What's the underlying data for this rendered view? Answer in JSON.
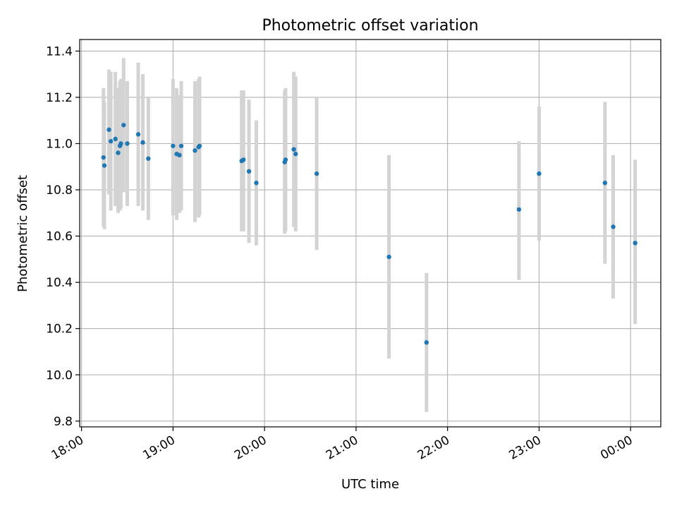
{
  "chart_data": {
    "type": "scatter",
    "title": "Photometric offset variation",
    "xlabel": "UTC time",
    "ylabel": "Photometric offset",
    "xlim_hours": [
      17.98,
      24.33
    ],
    "ylim": [
      9.775,
      11.45
    ],
    "grid": true,
    "x_ticks": [
      {
        "value": 18,
        "label": "18:00"
      },
      {
        "value": 19,
        "label": "19:00"
      },
      {
        "value": 20,
        "label": "20:00"
      },
      {
        "value": 21,
        "label": "21:00"
      },
      {
        "value": 22,
        "label": "22:00"
      },
      {
        "value": 23,
        "label": "23:00"
      },
      {
        "value": 24,
        "label": "00:00"
      }
    ],
    "y_ticks": [
      {
        "value": 9.8,
        "label": "9.8"
      },
      {
        "value": 10.0,
        "label": "10.0"
      },
      {
        "value": 10.2,
        "label": "10.2"
      },
      {
        "value": 10.4,
        "label": "10.4"
      },
      {
        "value": 10.6,
        "label": "10.6"
      },
      {
        "value": 10.8,
        "label": "10.8"
      },
      {
        "value": 11.0,
        "label": "11.0"
      },
      {
        "value": 11.2,
        "label": "11.2"
      },
      {
        "value": 11.4,
        "label": "11.4"
      }
    ],
    "colors": {
      "point": "#1f77b4",
      "errorbar": "#d3d3d3",
      "grid": "#b0b0b0"
    },
    "points": [
      {
        "t": 18.24,
        "y": 10.94,
        "lo": 10.64,
        "hi": 11.24
      },
      {
        "t": 18.25,
        "y": 10.905,
        "lo": 10.63,
        "hi": 11.18
      },
      {
        "t": 18.3,
        "y": 11.06,
        "lo": 10.78,
        "hi": 11.32
      },
      {
        "t": 18.32,
        "y": 11.01,
        "lo": 10.71,
        "hi": 11.31
      },
      {
        "t": 18.37,
        "y": 11.02,
        "lo": 10.73,
        "hi": 11.31
      },
      {
        "t": 18.4,
        "y": 10.96,
        "lo": 10.7,
        "hi": 11.24
      },
      {
        "t": 18.42,
        "y": 10.99,
        "lo": 10.71,
        "hi": 11.27
      },
      {
        "t": 18.43,
        "y": 11.0,
        "lo": 10.72,
        "hi": 11.28
      },
      {
        "t": 18.46,
        "y": 11.08,
        "lo": 10.79,
        "hi": 11.37
      },
      {
        "t": 18.5,
        "y": 11.0,
        "lo": 10.73,
        "hi": 11.27
      },
      {
        "t": 18.62,
        "y": 11.04,
        "lo": 10.73,
        "hi": 11.35
      },
      {
        "t": 18.67,
        "y": 11.005,
        "lo": 10.71,
        "hi": 11.3
      },
      {
        "t": 18.73,
        "y": 10.935,
        "lo": 10.67,
        "hi": 11.2
      },
      {
        "t": 19.0,
        "y": 10.99,
        "lo": 10.69,
        "hi": 11.28
      },
      {
        "t": 19.04,
        "y": 10.955,
        "lo": 10.67,
        "hi": 11.24
      },
      {
        "t": 19.07,
        "y": 10.95,
        "lo": 10.7,
        "hi": 11.21
      },
      {
        "t": 19.09,
        "y": 10.99,
        "lo": 10.71,
        "hi": 11.27
      },
      {
        "t": 19.24,
        "y": 10.97,
        "lo": 10.66,
        "hi": 11.27
      },
      {
        "t": 19.28,
        "y": 10.985,
        "lo": 10.68,
        "hi": 11.28
      },
      {
        "t": 19.29,
        "y": 10.99,
        "lo": 10.69,
        "hi": 11.29
      },
      {
        "t": 19.75,
        "y": 10.925,
        "lo": 10.62,
        "hi": 11.23
      },
      {
        "t": 19.77,
        "y": 10.93,
        "lo": 10.62,
        "hi": 11.23
      },
      {
        "t": 19.83,
        "y": 10.88,
        "lo": 10.57,
        "hi": 11.19
      },
      {
        "t": 19.91,
        "y": 10.83,
        "lo": 10.56,
        "hi": 11.1
      },
      {
        "t": 20.22,
        "y": 10.92,
        "lo": 10.61,
        "hi": 11.23
      },
      {
        "t": 20.23,
        "y": 10.93,
        "lo": 10.62,
        "hi": 11.24
      },
      {
        "t": 20.32,
        "y": 10.975,
        "lo": 10.64,
        "hi": 11.31
      },
      {
        "t": 20.34,
        "y": 10.955,
        "lo": 10.62,
        "hi": 11.29
      },
      {
        "t": 20.57,
        "y": 10.87,
        "lo": 10.54,
        "hi": 11.2
      },
      {
        "t": 21.36,
        "y": 10.51,
        "lo": 10.07,
        "hi": 10.95
      },
      {
        "t": 21.77,
        "y": 10.14,
        "lo": 9.84,
        "hi": 10.44
      },
      {
        "t": 22.78,
        "y": 10.715,
        "lo": 10.41,
        "hi": 11.01
      },
      {
        "t": 23.0,
        "y": 10.87,
        "lo": 10.58,
        "hi": 11.16
      },
      {
        "t": 23.72,
        "y": 10.83,
        "lo": 10.48,
        "hi": 11.18
      },
      {
        "t": 23.81,
        "y": 10.64,
        "lo": 10.33,
        "hi": 10.95
      },
      {
        "t": 24.05,
        "y": 10.57,
        "lo": 10.22,
        "hi": 10.93
      }
    ]
  }
}
